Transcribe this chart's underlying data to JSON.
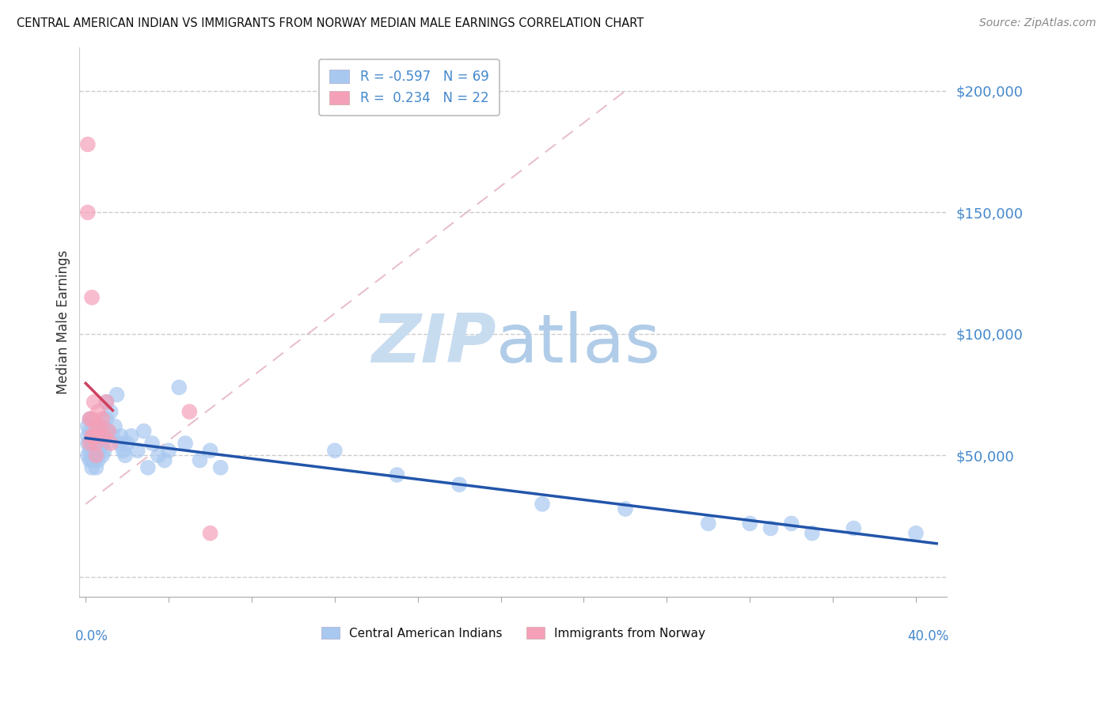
{
  "title": "CENTRAL AMERICAN INDIAN VS IMMIGRANTS FROM NORWAY MEDIAN MALE EARNINGS CORRELATION CHART",
  "source": "Source: ZipAtlas.com",
  "ylabel": "Median Male Earnings",
  "legend_blue_label": "Central American Indians",
  "legend_pink_label": "Immigrants from Norway",
  "blue_color": "#A8C8F0",
  "pink_color": "#F4A0B8",
  "blue_line_color": "#2255AA",
  "pink_line_color": "#D04060",
  "xlim": [
    -0.003,
    0.415
  ],
  "ylim": [
    -8000,
    218000
  ],
  "figsize": [
    14.06,
    8.92
  ],
  "dpi": 100,
  "blue_scatter_x": [
    0.001,
    0.001,
    0.001,
    0.001,
    0.002,
    0.002,
    0.002,
    0.002,
    0.002,
    0.003,
    0.003,
    0.003,
    0.003,
    0.003,
    0.004,
    0.004,
    0.004,
    0.004,
    0.005,
    0.005,
    0.005,
    0.005,
    0.006,
    0.006,
    0.006,
    0.007,
    0.007,
    0.008,
    0.008,
    0.008,
    0.009,
    0.009,
    0.01,
    0.01,
    0.011,
    0.012,
    0.013,
    0.014,
    0.015,
    0.016,
    0.017,
    0.018,
    0.019,
    0.02,
    0.022,
    0.025,
    0.028,
    0.03,
    0.032,
    0.035,
    0.038,
    0.04,
    0.045,
    0.048,
    0.055,
    0.06,
    0.065,
    0.12,
    0.15,
    0.18,
    0.22,
    0.26,
    0.3,
    0.32,
    0.33,
    0.34,
    0.35,
    0.37,
    0.4
  ],
  "blue_scatter_y": [
    62000,
    58000,
    55000,
    50000,
    65000,
    60000,
    55000,
    52000,
    48000,
    58000,
    55000,
    50000,
    48000,
    45000,
    62000,
    58000,
    52000,
    48000,
    60000,
    55000,
    50000,
    45000,
    58000,
    52000,
    48000,
    60000,
    55000,
    62000,
    55000,
    50000,
    58000,
    52000,
    72000,
    65000,
    60000,
    68000,
    58000,
    62000,
    75000,
    55000,
    58000,
    52000,
    50000,
    55000,
    58000,
    52000,
    60000,
    45000,
    55000,
    50000,
    48000,
    52000,
    78000,
    55000,
    48000,
    52000,
    45000,
    52000,
    42000,
    38000,
    30000,
    28000,
    22000,
    22000,
    20000,
    22000,
    18000,
    20000,
    18000
  ],
  "pink_scatter_x": [
    0.001,
    0.001,
    0.002,
    0.002,
    0.003,
    0.003,
    0.003,
    0.004,
    0.004,
    0.005,
    0.005,
    0.005,
    0.006,
    0.006,
    0.007,
    0.008,
    0.009,
    0.01,
    0.011,
    0.012,
    0.05,
    0.06
  ],
  "pink_scatter_y": [
    178000,
    150000,
    65000,
    55000,
    115000,
    65000,
    58000,
    72000,
    58000,
    62000,
    55000,
    50000,
    68000,
    58000,
    62000,
    65000,
    58000,
    72000,
    60000,
    55000,
    68000,
    18000
  ]
}
